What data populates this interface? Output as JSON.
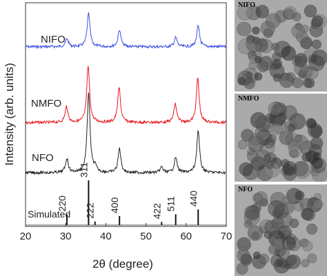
{
  "chart_data": {
    "type": "line",
    "xlabel": "2θ (degree)",
    "ylabel": "Intensity (arb. units)",
    "xlim": [
      20,
      70
    ],
    "xticks": [
      "20",
      "30",
      "40",
      "50",
      "60",
      "70"
    ],
    "series": [
      {
        "name": "NIFO",
        "color": "#3a4fe0",
        "peaks": [
          [
            30.3,
            0.25
          ],
          [
            35.7,
            1.0
          ],
          [
            43.4,
            0.52
          ],
          [
            57.4,
            0.28
          ],
          [
            63.0,
            0.62
          ]
        ]
      },
      {
        "name": "NMFO",
        "color": "#e8161e",
        "peaks": [
          [
            30.2,
            0.28
          ],
          [
            35.6,
            1.0
          ],
          [
            43.3,
            0.62
          ],
          [
            57.3,
            0.33
          ],
          [
            62.9,
            0.78
          ]
        ]
      },
      {
        "name": "NFO",
        "color": "#222222",
        "peaks": [
          [
            30.3,
            0.17
          ],
          [
            35.7,
            1.0
          ],
          [
            37.3,
            0.06
          ],
          [
            43.4,
            0.3
          ],
          [
            53.9,
            0.07
          ],
          [
            57.4,
            0.19
          ],
          [
            63.0,
            0.52
          ]
        ]
      }
    ],
    "simulated": {
      "name": "Simulated",
      "lines": [
        {
          "x": 30.3,
          "h": 0.24,
          "label": "220"
        },
        {
          "x": 35.7,
          "h": 1.0,
          "label": "311"
        },
        {
          "x": 37.3,
          "h": 0.08,
          "label": "222"
        },
        {
          "x": 43.4,
          "h": 0.2,
          "label": "400"
        },
        {
          "x": 53.9,
          "h": 0.07,
          "label": "422"
        },
        {
          "x": 57.4,
          "h": 0.24,
          "label": "511"
        },
        {
          "x": 63.0,
          "h": 0.35,
          "label": "440"
        }
      ]
    }
  },
  "tem_panels": [
    {
      "label": "NIFO"
    },
    {
      "label": "NMFO"
    },
    {
      "label": "NFO"
    }
  ]
}
